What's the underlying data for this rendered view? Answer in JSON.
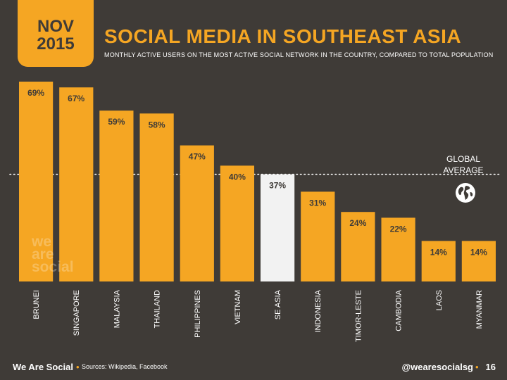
{
  "badge": {
    "month": "NOV",
    "year": "2015"
  },
  "title": "SOCIAL MEDIA IN SOUTHEAST ASIA",
  "subtitle": "MONTHLY ACTIVE USERS ON THE MOST ACTIVE SOCIAL NETWORK IN THE COUNTRY, COMPARED TO TOTAL POPULATION",
  "global": {
    "line1": "GLOBAL",
    "line2": "AVERAGE",
    "icon": "globe-icon"
  },
  "watermark": [
    "we",
    "are",
    "social"
  ],
  "footer": {
    "brand": "We Are Social",
    "sources": "Sources: Wikipedia, Facebook",
    "handle": "@wearesocialsg",
    "page": "16"
  },
  "colors": {
    "background": "#3f3b37",
    "bar": "#f5a623",
    "highlight": "#f2f2f2",
    "text": "#ffffff",
    "bar_label": "#3f3b37"
  },
  "chart_data": {
    "type": "bar",
    "categories": [
      "BRUNEI",
      "SINGAPORE",
      "MALAYSIA",
      "THAILAND",
      "PHILIPPINES",
      "VIETNAM",
      "SE ASIA",
      "INDONESIA",
      "TIMOR-LESTE",
      "CAMBODIA",
      "LAOS",
      "MYANMAR"
    ],
    "values": [
      69,
      67,
      59,
      58,
      47,
      40,
      37,
      31,
      24,
      22,
      14,
      14
    ],
    "value_labels": [
      "69%",
      "67%",
      "59%",
      "58%",
      "47%",
      "40%",
      "37%",
      "31%",
      "24%",
      "22%",
      "14%",
      "14%"
    ],
    "highlight_category": "SE ASIA",
    "reference_line": {
      "value": 37,
      "style": "dotted"
    },
    "ylim": [
      0,
      72
    ],
    "grid": false,
    "legend": "none"
  }
}
